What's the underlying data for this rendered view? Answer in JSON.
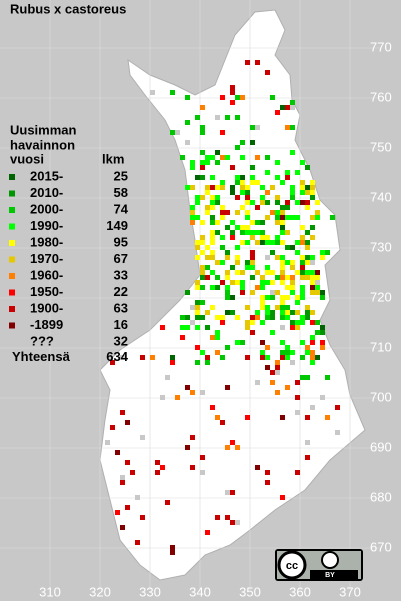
{
  "title": "Rubus x castoreus",
  "legend": {
    "header": [
      "Uusimman",
      "havainnon",
      "vuosi"
    ],
    "count_header": "lkm",
    "rows": [
      {
        "label": "2015-",
        "count": 25,
        "color": "#006400"
      },
      {
        "label": "2010-",
        "count": 58,
        "color": "#009600"
      },
      {
        "label": "2000-",
        "count": 74,
        "color": "#00c800"
      },
      {
        "label": "1990-",
        "count": 149,
        "color": "#00ff00"
      },
      {
        "label": "1980-",
        "count": 95,
        "color": "#ffff00"
      },
      {
        "label": "1970-",
        "count": 67,
        "color": "#e6c800"
      },
      {
        "label": "1960-",
        "count": 33,
        "color": "#ff8000"
      },
      {
        "label": "1950-",
        "count": 22,
        "color": "#ff0000"
      },
      {
        "label": "1900-",
        "count": 63,
        "color": "#c80000"
      },
      {
        "label": "-1899",
        "count": 16,
        "color": "#800000"
      },
      {
        "label": "???",
        "count": 32,
        "color": "#c8c8c8"
      }
    ],
    "total_label": "Yhteensä",
    "total": 634
  },
  "x_labels": [
    310,
    320,
    330,
    340,
    350,
    360,
    370
  ],
  "y_labels": [
    770,
    760,
    750,
    740,
    730,
    720,
    710,
    700,
    690,
    680,
    670
  ],
  "badge": {
    "cc": "cc",
    "by": "BY"
  }
}
